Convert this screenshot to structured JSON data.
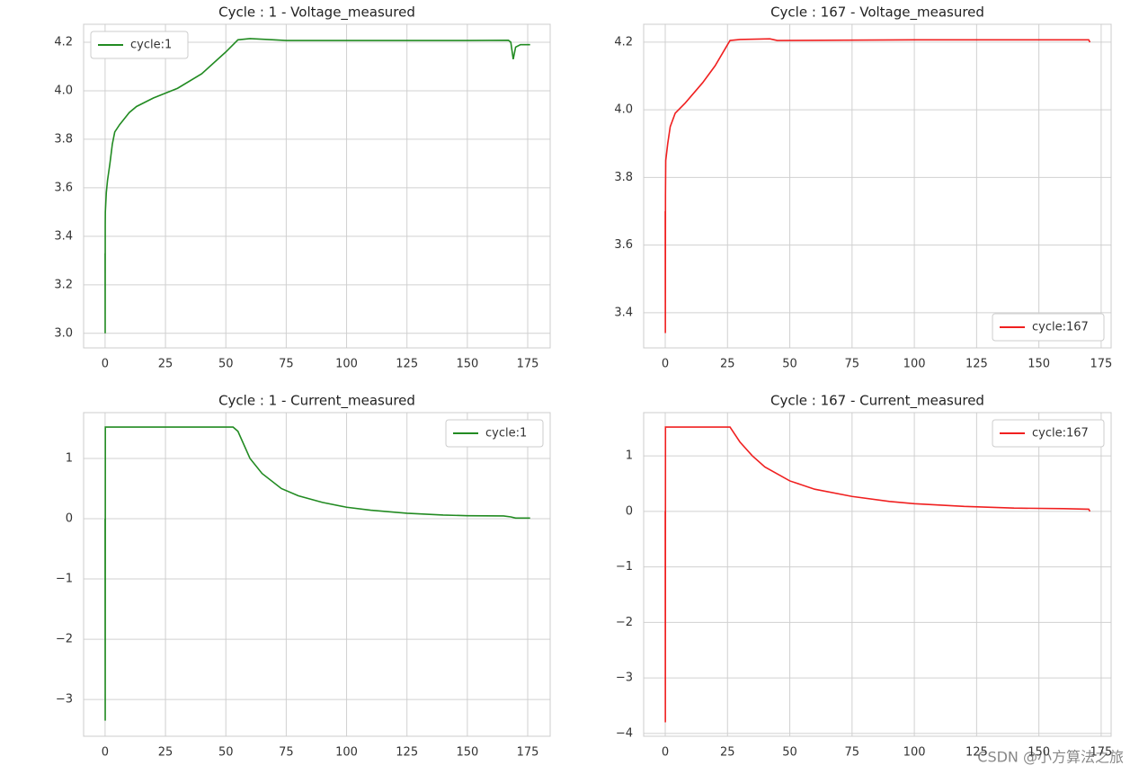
{
  "chart_data": [
    {
      "type": "line",
      "title": "Cycle : 1 - Voltage_measured",
      "x": [
        0,
        0.03,
        0.06,
        0.1,
        0.5,
        1,
        2,
        3,
        4,
        6,
        10,
        13,
        20,
        30,
        40,
        50,
        55,
        60,
        70,
        75,
        100,
        150,
        167,
        168,
        169,
        170,
        172,
        176
      ],
      "series": [
        {
          "name": "cycle:1",
          "color": "#228b22",
          "values": [
            3.33,
            3.0,
            3.45,
            3.5,
            3.58,
            3.63,
            3.7,
            3.78,
            3.83,
            3.86,
            3.91,
            3.935,
            3.97,
            4.01,
            4.07,
            4.16,
            4.21,
            4.215,
            4.21,
            4.207,
            4.207,
            4.207,
            4.208,
            4.2,
            4.13,
            4.18,
            4.19,
            4.19
          ]
        }
      ],
      "xlim": [
        -8.9,
        184.3
      ],
      "ylim": [
        2.94,
        4.274
      ],
      "xticks": [
        0,
        25,
        50,
        75,
        100,
        125,
        150,
        175
      ],
      "yticks": [
        {
          "value": 3.0,
          "label": "3.0"
        },
        3.2,
        3.4,
        3.6,
        3.8,
        {
          "value": 4.0,
          "label": "4.0"
        },
        4.2
      ],
      "legend": "upper left",
      "grid": true
    },
    {
      "type": "line",
      "title": "Cycle : 167 - Voltage_measured",
      "x": [
        0,
        0.05,
        0.1,
        0.2,
        1,
        2,
        4,
        8,
        15,
        20,
        26,
        30,
        42,
        45,
        100,
        170,
        170.5
      ],
      "series": [
        {
          "name": "cycle:167",
          "color": "#f02020",
          "values": [
            3.7,
            3.34,
            3.75,
            3.85,
            3.9,
            3.95,
            3.99,
            4.02,
            4.08,
            4.13,
            4.205,
            4.208,
            4.21,
            4.205,
            4.207,
            4.207,
            4.2
          ]
        }
      ],
      "xlim": [
        -8.66,
        179.0
      ],
      "ylim": [
        3.296,
        4.253
      ],
      "xticks": [
        0,
        25,
        50,
        75,
        100,
        125,
        150,
        175
      ],
      "yticks": [
        3.4,
        3.6,
        3.8,
        {
          "value": 4.0,
          "label": "4.0"
        },
        4.2
      ],
      "legend": "lower right",
      "grid": true
    },
    {
      "type": "line",
      "title": "Cycle : 1 - Current_measured",
      "x": [
        0,
        0.05,
        0.1,
        53,
        55,
        60,
        65,
        73,
        80,
        90,
        100,
        110,
        125,
        140,
        150,
        165,
        168,
        170,
        176
      ],
      "series": [
        {
          "name": "cycle:1",
          "color": "#228b22",
          "values": [
            0,
            -3.35,
            1.52,
            1.52,
            1.45,
            1.0,
            0.75,
            0.5,
            0.38,
            0.27,
            0.19,
            0.14,
            0.09,
            0.06,
            0.05,
            0.045,
            0.03,
            0.01,
            0.01
          ]
        }
      ],
      "xlim": [
        -8.9,
        184.3
      ],
      "ylim": [
        -3.61,
        1.76
      ],
      "xticks": [
        0,
        25,
        50,
        75,
        100,
        125,
        150,
        175
      ],
      "yticks": [
        {
          "value": -3,
          "label": "−3"
        },
        {
          "value": -2,
          "label": "−2"
        },
        {
          "value": -1,
          "label": "−1"
        },
        0,
        1
      ],
      "legend": "upper right",
      "grid": true
    },
    {
      "type": "line",
      "title": "Cycle : 167 - Current_measured",
      "x": [
        0,
        0.05,
        0.1,
        26,
        30,
        35,
        40,
        50,
        60,
        75,
        90,
        100,
        120,
        140,
        160,
        170,
        170.5
      ],
      "series": [
        {
          "name": "cycle:167",
          "color": "#f02020",
          "values": [
            0,
            -3.8,
            1.52,
            1.52,
            1.25,
            1.0,
            0.8,
            0.55,
            0.4,
            0.27,
            0.18,
            0.14,
            0.09,
            0.06,
            0.05,
            0.04,
            0
          ]
        }
      ],
      "xlim": [
        -8.66,
        179.0
      ],
      "ylim": [
        -4.05,
        1.78
      ],
      "xticks": [
        0,
        25,
        50,
        75,
        100,
        125,
        150,
        175
      ],
      "yticks": [
        {
          "value": -4,
          "label": "−4"
        },
        {
          "value": -3,
          "label": "−3"
        },
        {
          "value": -2,
          "label": "−2"
        },
        {
          "value": -1,
          "label": "−1"
        },
        0,
        1
      ],
      "legend": "upper right",
      "grid": true
    }
  ],
  "watermark": "CSDN @小方算法之旅"
}
